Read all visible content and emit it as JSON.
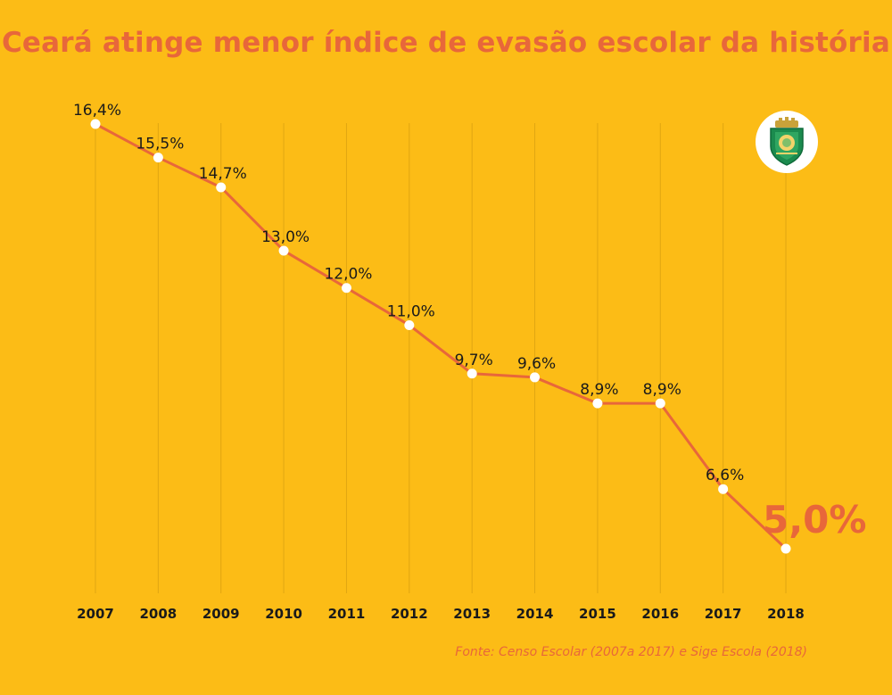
{
  "title": "Ceará atinge menor índice de evasão escolar da história",
  "source": "Fonte: Censo Escolar (2007a 2017) e Sige Escola (2018)",
  "colors": {
    "background": "#FCBC16",
    "line": "#E8673A",
    "marker": "#FFFFFF",
    "grid": "#E0A612",
    "highlight": "#E8673A",
    "text": "#1A1A1A"
  },
  "logo": {
    "icon": "ceara-coat-of-arms-icon"
  },
  "chart_data": {
    "type": "line",
    "title": "Ceará atinge menor índice de evasão escolar da história",
    "xlabel": "",
    "ylabel": "",
    "grid": "vertical",
    "x": [
      "2007",
      "2008",
      "2009",
      "2010",
      "2011",
      "2012",
      "2013",
      "2014",
      "2015",
      "2016",
      "2017",
      "2018"
    ],
    "series": [
      {
        "values": [
          16.4,
          15.5,
          14.7,
          13.0,
          12.0,
          11.0,
          9.7,
          9.6,
          8.9,
          8.9,
          6.6,
          5.0
        ],
        "labels": [
          "16,4%",
          "15,5%",
          "14,7%",
          "13,0%",
          "12,0%",
          "11,0%",
          "9,7%",
          "9,6%",
          "8,9%",
          "8,9%",
          "6,6%",
          "5,0%"
        ]
      }
    ],
    "highlight_index": 11
  }
}
